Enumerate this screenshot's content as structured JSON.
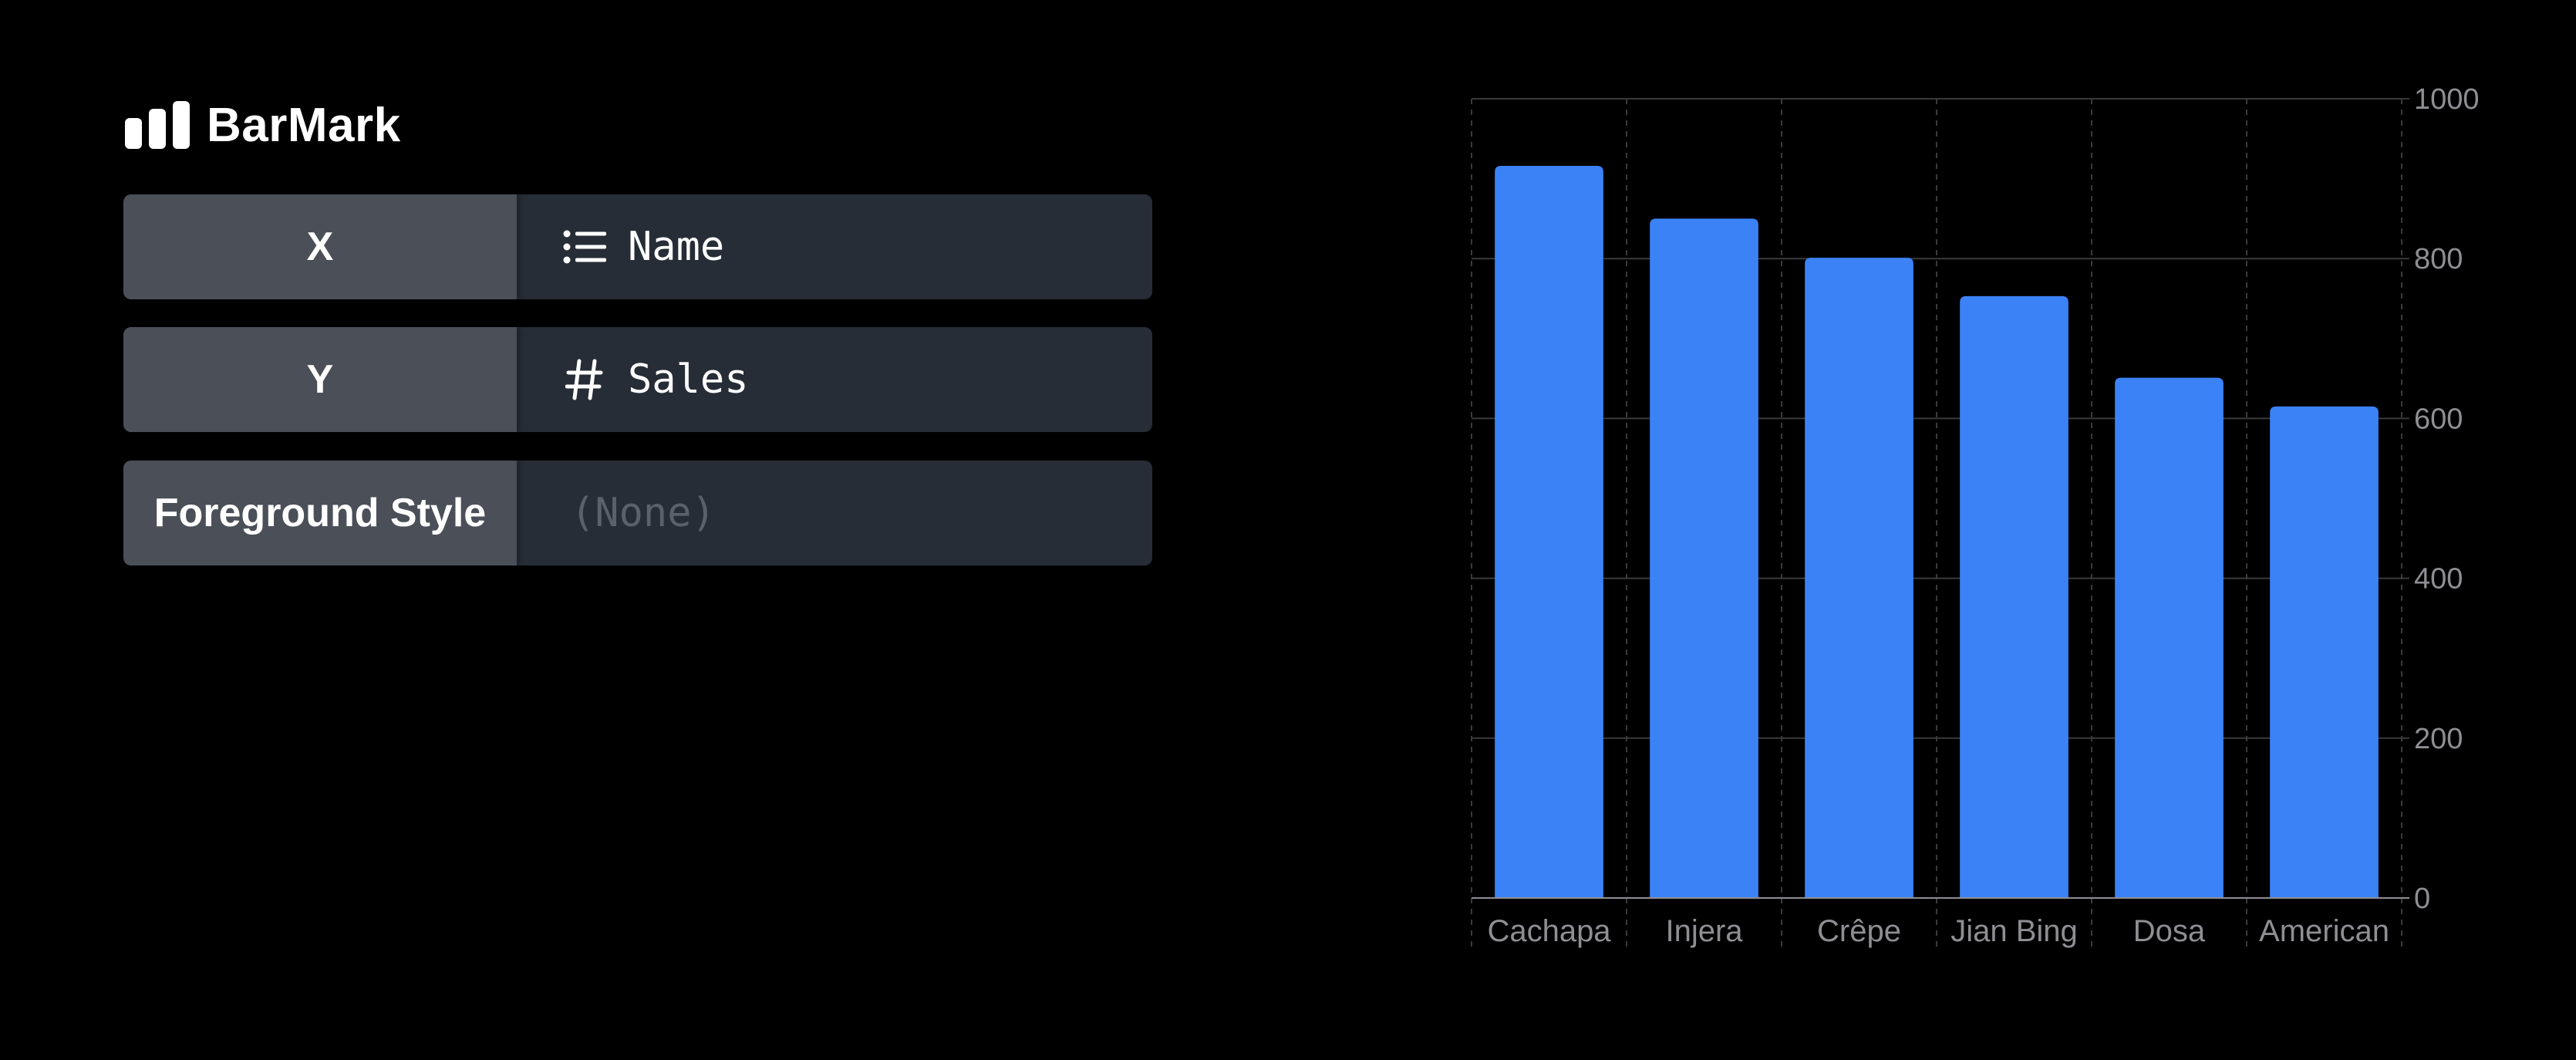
{
  "panel": {
    "title": "BarMark",
    "title_icon": "bar-chart-icon",
    "rows": [
      {
        "key": "X",
        "value": "Name",
        "icon": "list-icon"
      },
      {
        "key": "Y",
        "value": "Sales",
        "icon": "number-sign-icon"
      },
      {
        "key": "Foreground Style",
        "value": "(None)",
        "icon": ""
      }
    ]
  },
  "colors": {
    "bar": "#3b82f6",
    "key_bg": "#4a4f58",
    "value_bg": "#272d36",
    "grid": "#3a3a3c"
  },
  "chart_data": {
    "type": "bar",
    "categories": [
      "Cachapa",
      "Injera",
      "Crêpe",
      "Jian Bing",
      "Dosa",
      "American"
    ],
    "values": [
      916,
      850,
      801,
      753,
      651,
      615
    ],
    "ylim": [
      0,
      1000
    ],
    "yticks": [
      "0",
      "200",
      "400",
      "600",
      "800",
      "1000"
    ],
    "ytick_values": [
      0,
      200,
      400,
      600,
      800,
      1000
    ],
    "grid": true,
    "y_axis_position": "right"
  }
}
